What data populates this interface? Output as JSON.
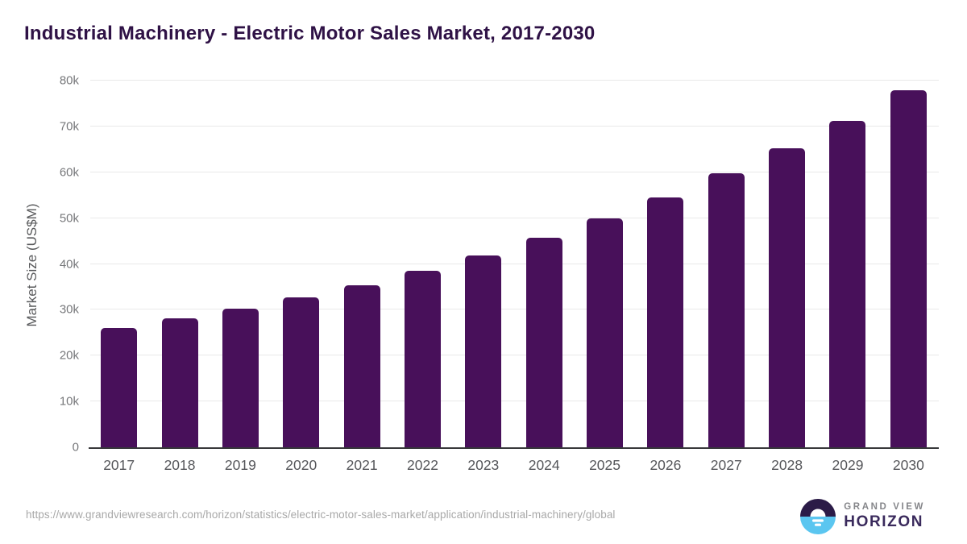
{
  "title": "Industrial Machinery - Electric Motor Sales Market, 2017-2030",
  "chart_data": {
    "type": "bar",
    "title": "Industrial Machinery - Electric Motor Sales Market, 2017-2030",
    "categories": [
      "2017",
      "2018",
      "2019",
      "2020",
      "2021",
      "2022",
      "2023",
      "2024",
      "2025",
      "2026",
      "2027",
      "2028",
      "2029",
      "2030"
    ],
    "values": [
      26000,
      28100,
      30300,
      32700,
      35400,
      38500,
      41800,
      45700,
      50000,
      54500,
      59700,
      65200,
      71200,
      77900
    ],
    "xlabel": "",
    "ylabel": "Market Size (US$M)",
    "ylim": [
      0,
      80000
    ],
    "yticks": [
      0,
      10000,
      20000,
      30000,
      40000,
      50000,
      60000,
      70000,
      80000
    ],
    "ytick_labels": [
      "0",
      "10k",
      "20k",
      "30k",
      "40k",
      "50k",
      "60k",
      "70k",
      "80k"
    ],
    "bar_color": "#48105a",
    "grid": true,
    "legend": false
  },
  "footer": {
    "source_url": "https://www.grandviewresearch.com/horizon/statistics/electric-motor-sales-market/application/industrial-machinery/global",
    "logo": {
      "top": "GRAND VIEW",
      "bottom": "HORIZON"
    }
  },
  "colors": {
    "title_text": "#2f1246",
    "bar": "#48105a",
    "axis_line": "#37383a",
    "gridline": "#e9e9e9",
    "ytick_text": "#76777a",
    "xtick_text": "#55565a",
    "url_text": "#a8a8a8",
    "logo_dark": "#2b1b47",
    "logo_blue": "#5bc6f0"
  }
}
